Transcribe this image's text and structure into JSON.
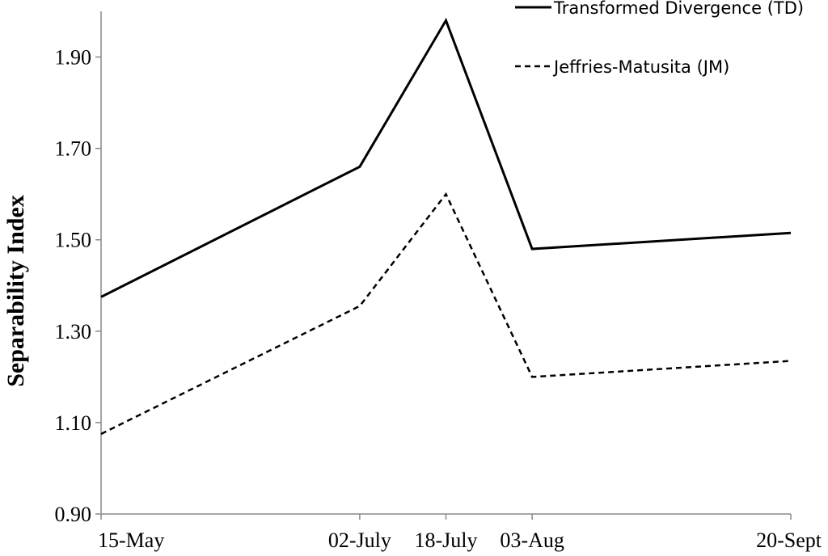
{
  "chart_data": {
    "type": "line",
    "title": "",
    "xlabel": "",
    "ylabel": "Separability Index",
    "categories": [
      "15-May",
      "02-July",
      "18-July",
      "03-Aug",
      "20-Sept"
    ],
    "x_dates": [
      "2000-05-15",
      "2000-07-02",
      "2000-07-18",
      "2000-08-03",
      "2000-09-20"
    ],
    "ylim": [
      0.9,
      2.0
    ],
    "yticks": [
      "0.90",
      "1.10",
      "1.30",
      "1.50",
      "1.70",
      "1.90"
    ],
    "grid": false,
    "legend_position": "top-right",
    "series": [
      {
        "name": "Transformed Divergence (TD)",
        "style": "solid",
        "color": "#000000",
        "values": [
          1.375,
          1.66,
          1.98,
          1.48,
          1.515
        ]
      },
      {
        "name": "Jeffries-Matusita (JM)",
        "style": "dashed",
        "color": "#000000",
        "values": [
          1.075,
          1.355,
          1.6,
          1.2,
          1.235
        ]
      }
    ]
  }
}
